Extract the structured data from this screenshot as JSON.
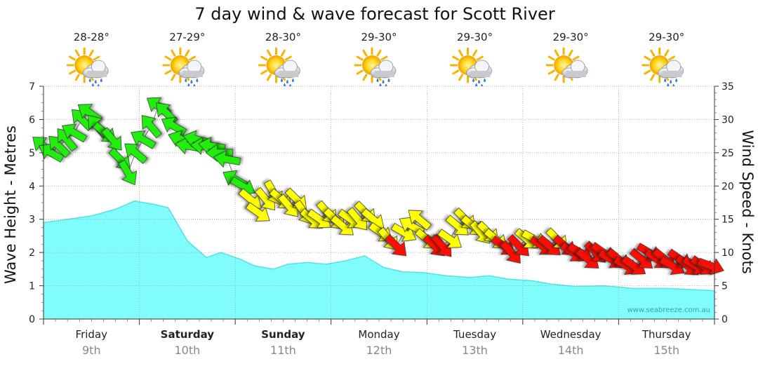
{
  "chart_data": {
    "type": "area",
    "title": "7 day wind & wave forecast for Scott River",
    "ylabel_left": "Wave Height - Metres",
    "ylabel_right": "Wind Speed - Knots",
    "ylim_left": [
      0,
      7
    ],
    "yticks_left": [
      0,
      1,
      2,
      3,
      4,
      5,
      6,
      7
    ],
    "ylim_right": [
      0,
      35
    ],
    "yticks_right": [
      0,
      5,
      10,
      15,
      20,
      25,
      30,
      35
    ],
    "watermark": "www.seabreeze.com.au",
    "grid": true,
    "days": [
      {
        "name": "Friday",
        "date": "9th",
        "temp": "28-28°",
        "bold": false,
        "weather": "showers"
      },
      {
        "name": "Saturday",
        "date": "10th",
        "temp": "27-29°",
        "bold": true,
        "weather": "showers"
      },
      {
        "name": "Sunday",
        "date": "11th",
        "temp": "28-30°",
        "bold": true,
        "weather": "showers"
      },
      {
        "name": "Monday",
        "date": "12th",
        "temp": "29-30°",
        "bold": false,
        "weather": "showers"
      },
      {
        "name": "Tuesday",
        "date": "13th",
        "temp": "29-30°",
        "bold": false,
        "weather": "showers"
      },
      {
        "name": "Wednesday",
        "date": "14th",
        "temp": "29-30°",
        "bold": false,
        "weather": "partly-cloudy"
      },
      {
        "name": "Thursday",
        "date": "15th",
        "temp": "29-30°",
        "bold": false,
        "weather": "showers"
      }
    ],
    "wave_height": {
      "x_days": [
        0,
        0.25,
        0.5,
        0.75,
        0.95,
        1.15,
        1.3,
        1.5,
        1.7,
        1.85,
        2.05,
        2.2,
        2.4,
        2.55,
        2.75,
        2.95,
        3.15,
        3.35,
        3.55,
        3.75,
        3.95,
        4.2,
        4.45,
        4.65,
        4.85,
        5.1,
        5.3,
        5.55,
        5.85,
        6.15,
        6.5,
        6.8,
        7.0
      ],
      "values": [
        2.9,
        3.0,
        3.1,
        3.3,
        3.55,
        3.45,
        3.35,
        2.35,
        1.85,
        2.0,
        1.8,
        1.6,
        1.5,
        1.65,
        1.7,
        1.65,
        1.75,
        1.9,
        1.55,
        1.42,
        1.4,
        1.3,
        1.25,
        1.3,
        1.2,
        1.15,
        1.05,
        0.98,
        1.0,
        0.92,
        0.92,
        0.88,
        0.85
      ]
    },
    "wind": {
      "x_days": [
        0.0,
        0.08,
        0.16,
        0.24,
        0.32,
        0.4,
        0.48,
        0.56,
        0.64,
        0.72,
        0.8,
        0.88,
        0.96,
        1.04,
        1.12,
        1.2,
        1.28,
        1.36,
        1.44,
        1.52,
        1.6,
        1.68,
        1.76,
        1.84,
        1.92,
        2.0,
        2.08,
        2.16,
        2.24,
        2.32,
        2.4,
        2.48,
        2.56,
        2.64,
        2.72,
        2.8,
        2.88,
        2.96,
        3.04,
        3.12,
        3.2,
        3.28,
        3.36,
        3.44,
        3.52,
        3.6,
        3.68,
        3.76,
        3.84,
        3.92,
        4.0,
        4.08,
        4.16,
        4.24,
        4.32,
        4.4,
        4.48,
        4.56,
        4.64,
        4.72,
        4.8,
        4.88,
        4.96,
        5.04,
        5.12,
        5.2,
        5.28,
        5.36,
        5.44,
        5.52,
        5.6,
        5.68,
        5.76,
        5.84,
        5.92,
        6.0,
        6.08,
        6.16,
        6.24,
        6.32,
        6.4,
        6.48,
        6.56,
        6.64,
        6.72,
        6.8,
        6.88,
        6.96
      ],
      "speeds_knots": [
        26,
        25,
        26,
        27,
        28,
        30,
        31,
        29,
        28,
        27,
        24,
        22,
        25,
        27,
        29,
        32,
        31,
        29,
        27,
        26,
        27,
        26,
        26,
        25,
        24,
        21,
        20,
        18,
        16,
        18,
        19,
        18,
        17,
        18,
        16,
        15,
        15,
        16,
        15,
        14,
        15,
        15,
        16,
        15,
        13,
        12,
        11,
        13,
        14,
        15,
        12,
        11,
        11,
        12,
        14,
        15,
        14,
        13,
        13,
        12,
        11,
        10,
        11,
        12,
        12,
        11,
        11,
        12,
        11,
        10,
        10,
        9,
        10,
        10,
        9,
        9,
        8,
        8,
        9,
        10,
        9,
        9,
        8,
        9,
        8,
        8,
        8,
        8
      ],
      "direction_deg": [
        310,
        300,
        315,
        320,
        300,
        315,
        305,
        320,
        130,
        140,
        135,
        150,
        310,
        300,
        320,
        305,
        315,
        300,
        290,
        280,
        285,
        275,
        280,
        270,
        280,
        300,
        120,
        130,
        125,
        140,
        150,
        130,
        140,
        135,
        145,
        130,
        125,
        140,
        135,
        130,
        125,
        140,
        135,
        130,
        125,
        140,
        135,
        120,
        300,
        310,
        130,
        135,
        140,
        125,
        130,
        135,
        130,
        140,
        135,
        130,
        125,
        140,
        135,
        130,
        120,
        125,
        130,
        135,
        130,
        125,
        120,
        130,
        135,
        125,
        120,
        130,
        120,
        125,
        130,
        120,
        125,
        130,
        120,
        125,
        130,
        120,
        125,
        110
      ],
      "color_thresholds": {
        "green_min": 20,
        "yellow_min": 12,
        "green": "#22ee11",
        "yellow": "#ffff00",
        "red": "#ff1100"
      }
    },
    "colors": {
      "wave_fill": "#80fcfc",
      "wave_stroke": "#55e0e8",
      "grid": "#999999"
    }
  }
}
